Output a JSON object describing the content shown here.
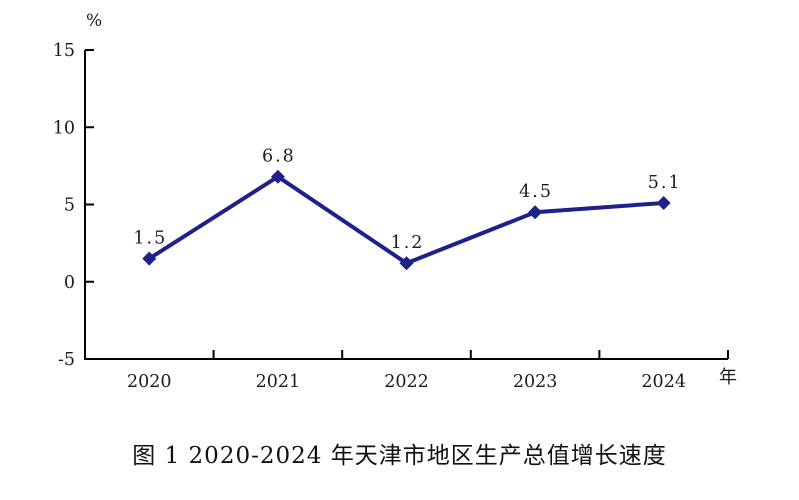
{
  "page": {
    "background": "#ffffff"
  },
  "chart_data": {
    "type": "line",
    "title": "图 1 2020-2024 年天津市地区生产总值增长速度",
    "xlabel": "年",
    "ylabel": "%",
    "categories": [
      "2020",
      "2021",
      "2022",
      "2023",
      "2024"
    ],
    "values": [
      1.5,
      6.8,
      1.2,
      4.5,
      5.1
    ],
    "value_labels": [
      "1.5",
      "6.8",
      "1.2",
      "4.5",
      "5.1"
    ],
    "ylim": [
      -5,
      15
    ],
    "y_ticks": [
      15,
      10,
      5,
      0,
      -5
    ],
    "y_tick_labels": [
      "15",
      "10",
      "5",
      "0",
      "-5"
    ],
    "grid": false,
    "legend": "none",
    "line_color": "#1f218b",
    "marker": "diamond",
    "axis_color": "#000000",
    "label_color": "#1c1c1c"
  }
}
